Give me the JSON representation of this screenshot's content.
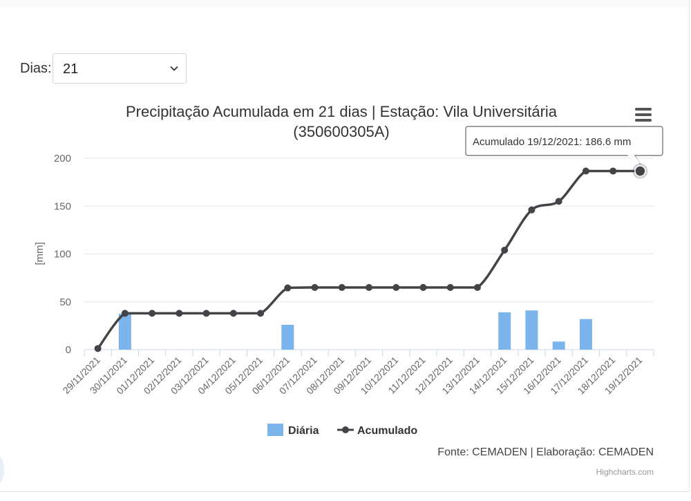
{
  "filter": {
    "label": "Dias:",
    "selected": "21"
  },
  "chart_data": {
    "type": "bar+line",
    "title_line1": "Precipitação Acumulada em 21 dias | Estação: Vila Universitária",
    "title_line2": "(350600305A)",
    "ylabel": "[mm]",
    "ylim": [
      0,
      200
    ],
    "yticks": [
      0,
      50,
      100,
      150,
      200
    ],
    "grid": true,
    "legend_position": "bottom-center",
    "categories": [
      "29/11/2021",
      "30/11/2021",
      "01/12/2021",
      "02/12/2021",
      "03/12/2021",
      "04/12/2021",
      "05/12/2021",
      "06/12/2021",
      "07/12/2021",
      "08/12/2021",
      "09/12/2021",
      "10/12/2021",
      "11/12/2021",
      "12/12/2021",
      "13/12/2021",
      "14/12/2021",
      "15/12/2021",
      "16/12/2021",
      "17/12/2021",
      "18/12/2021",
      "19/12/2021"
    ],
    "series": [
      {
        "name": "Diária",
        "type": "bar",
        "color": "#7cb5ec",
        "values": [
          0,
          37.5,
          0,
          0,
          0,
          0,
          0,
          26,
          0,
          0,
          0,
          0,
          0,
          0,
          0,
          39,
          41,
          8.5,
          32,
          0,
          0
        ]
      },
      {
        "name": "Acumulado",
        "type": "line",
        "color": "#434348",
        "values": [
          1.2,
          38,
          38,
          38,
          38,
          38,
          38,
          64.5,
          65,
          65,
          65,
          65,
          65,
          65,
          65,
          104,
          146,
          155,
          186.6,
          186.6,
          186.6
        ]
      }
    ],
    "tooltip": {
      "text": "Acumulado 19/12/2021: 186.6 mm",
      "index": 20
    },
    "credits": "Fonte: CEMADEN | Elaboração: CEMADEN",
    "credits_site": "Highcharts.com"
  }
}
